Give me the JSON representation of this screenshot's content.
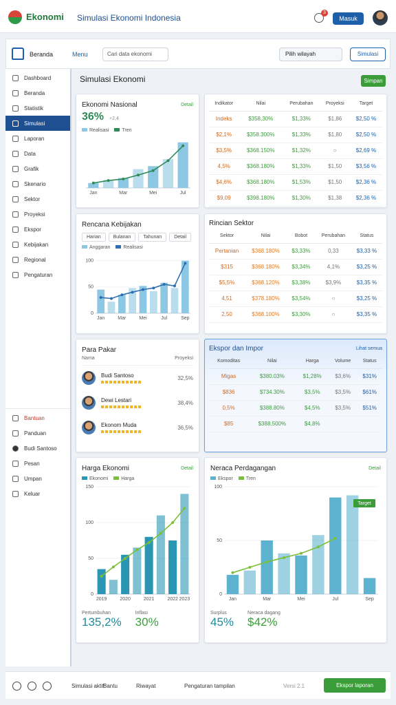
{
  "header": {
    "logo": "Ekonomi",
    "title": "Simulasi Ekonomi Indonesia",
    "badge": "3",
    "button": "Masuk"
  },
  "toolbar": {
    "home": "Beranda",
    "menu": "Menu",
    "search": "Cari data ekonomi",
    "select": "Pilih wilayah",
    "button": "Simulasi"
  },
  "sidebar": {
    "items": [
      "Dashboard",
      "Beranda",
      "Statistik",
      "Simulasi",
      "Laporan",
      "Data",
      "Grafik",
      "Skenario",
      "Sektor",
      "Proyeksi",
      "Ekspor",
      "Kebijakan",
      "Regional",
      "Pengaturan"
    ],
    "bottom_items": [
      "Bantuan",
      "Panduan",
      "Budi Santoso",
      "Pesan",
      "Umpan",
      "Keluar"
    ]
  },
  "page": {
    "title": "Simulasi Ekonomi",
    "save": "Simpan"
  },
  "panels": [
    {
      "kind": "chart",
      "title": "Ekonomi Nasional",
      "action": "Detail",
      "headline": "36%",
      "note": "+2,4",
      "chart": {
        "type": "combo",
        "categories": [
          "Jan",
          null,
          "Mar",
          null,
          "Mei",
          null,
          "Jul"
        ],
        "ylim": [
          0,
          100
        ],
        "series": [
          {
            "name": "Realisasi",
            "kind": "bar",
            "color": "#8cc7e3",
            "values": [
              10,
              16,
              20,
              38,
              44,
              58,
              92
            ]
          },
          {
            "name": "Tren",
            "kind": "line",
            "color": "#2e8b57",
            "values": [
              10,
              15,
              18,
              26,
              35,
              55,
              85
            ]
          }
        ]
      }
    },
    {
      "kind": "table",
      "columns": [
        "Indikator",
        "Nilai",
        "Perubahan",
        "Proyeksi",
        "Target"
      ],
      "rows": [
        [
          "Indeks",
          "$358,30%",
          "$1,33%",
          "$1,86",
          "$2,50 %"
        ],
        [
          "$2,1%",
          "$358.300%",
          "$1,33%",
          "$1,80",
          "$2,50 %"
        ],
        [
          "$3,5%",
          "$368.150%",
          "$1,32%",
          "○",
          "$2,69 %"
        ],
        [
          "4,5%",
          "$368.180%",
          "$1,33%",
          "$1,50",
          "$3,56 %"
        ],
        [
          "$4,6%",
          "$368.180%",
          "$1,53%",
          "$1,50",
          "$2,36 %"
        ],
        [
          "$9,09",
          "$398.180%",
          "$1,30%",
          "$1,38",
          "$2,36 %"
        ]
      ]
    },
    {
      "kind": "chart",
      "title": "Rencana Kebijakan",
      "tabs": [
        "Harian",
        "Bulanan",
        "Tahunan",
        "Detail"
      ],
      "chart": {
        "type": "combo",
        "categories": [
          "Jan",
          null,
          "Mar",
          null,
          "Mei",
          null,
          "Jul",
          null,
          "Sep"
        ],
        "ylim": [
          0,
          110
        ],
        "yticks": [
          0,
          50,
          100
        ],
        "series": [
          {
            "name": "Anggaran",
            "kind": "bar",
            "color": "#8cc7e3",
            "values": [
              45,
              22,
              35,
              48,
              52,
              42,
              58,
              48,
              100
            ]
          },
          {
            "name": "Realisasi",
            "kind": "line",
            "color": "#2f6fb0",
            "values": [
              30,
              28,
              35,
              40,
              45,
              48,
              55,
              52,
              95
            ]
          }
        ]
      }
    },
    {
      "kind": "table",
      "title": "Rincian Sektor",
      "columns": [
        "Sektor",
        "Nilai",
        "Bobot",
        "Perubahan",
        "Status"
      ],
      "rows": [
        [
          "Pertanian",
          "$368.180%",
          "$3,33%",
          "0,33",
          "$3,33 %"
        ],
        [
          "$315",
          "$368.180%",
          "$3,34%",
          "4,1%",
          "$3,25 %"
        ],
        [
          "$5,5%",
          "$368.120%",
          "$3,38%",
          "$3,9%",
          "$3,35 %"
        ],
        [
          "4,51",
          "$378.180%",
          "$3,54%",
          "○",
          "$3,25 %"
        ],
        [
          "2,50",
          "$368.100%",
          "$3,30%",
          "○",
          "$3,35 %"
        ]
      ]
    },
    {
      "kind": "list",
      "title": "Para Pakar",
      "columns": [
        "Nama",
        "Proyeksi"
      ],
      "items": [
        {
          "name": "Budi Santoso",
          "value": "32,5%"
        },
        {
          "name": "Dewi Lestari",
          "value": "38,4%"
        },
        {
          "name": "Ekonom Muda",
          "value": "36,5%"
        }
      ]
    },
    {
      "kind": "table",
      "title": "Ekspor dan Impor",
      "action": "Lihat semua",
      "columns": [
        "Komoditas",
        "Nilai",
        "Harga",
        "Volume",
        "Status"
      ],
      "rows": [
        [
          "Migas",
          "$380.03%",
          "$1,28%",
          "$3,6%",
          "$31%"
        ],
        [
          "$836",
          "$734.30%",
          "$3,5%",
          "$3,5%",
          "$61%"
        ],
        [
          "0,5%",
          "$388.80%",
          "$4,5%",
          "$3,5%",
          "$51%"
        ],
        [
          "$85",
          "$388.500%",
          "$4,8%",
          "",
          ""
        ]
      ]
    },
    {
      "kind": "chart",
      "title": "Harga Ekonomi",
      "action": "Detail",
      "chart": {
        "type": "combo",
        "categories": [
          "2019",
          null,
          "2020",
          null,
          "2021",
          null,
          "2022",
          "2023"
        ],
        "ylim": [
          0,
          150
        ],
        "yticks": [
          0,
          50,
          100,
          150
        ],
        "series": [
          {
            "name": "Ekonomi",
            "kind": "bar",
            "color": "#2a96b3",
            "values": [
              35,
              20,
              55,
              65,
              80,
              110,
              75,
              140
            ]
          },
          {
            "name": "Harga",
            "kind": "line",
            "color": "#7cbf3a",
            "values": [
              25,
              38,
              50,
              62,
              72,
              85,
              100,
              120
            ]
          }
        ]
      },
      "stats": [
        {
          "label": "Pertumbuhan",
          "value": "135,2%"
        },
        {
          "label": "Inflasi",
          "value": "30%"
        }
      ]
    },
    {
      "kind": "chart",
      "title": "Neraca Perdagangan",
      "action": "Detail",
      "chart": {
        "type": "combo",
        "categories": [
          "Jan",
          null,
          "Mar",
          null,
          "Mei",
          null,
          "Jul",
          null,
          "Sep"
        ],
        "ylim": [
          0,
          100
        ],
        "yticks": [
          0,
          50,
          100
        ],
        "annotation": "Target",
        "series": [
          {
            "name": "Ekspor",
            "kind": "bar",
            "color": "#5db3cf",
            "values": [
              18,
              22,
              50,
              38,
              36,
              55,
              90,
              92,
              15
            ]
          },
          {
            "name": "Tren",
            "kind": "line",
            "color": "#7cbf3a",
            "values": [
              20,
              25,
              30,
              34,
              38,
              44,
              52,
              null,
              null
            ]
          }
        ]
      },
      "stats": [
        {
          "label": "Surplus",
          "value": "45%"
        },
        {
          "label": "Neraca dagang",
          "value": "$42%"
        }
      ]
    }
  ],
  "footer": {
    "status": "Simulasi aktif",
    "help": "Bantu",
    "history": "Riwayat",
    "view": "Pengaturan tampilan",
    "version": "Versi 2.1",
    "button": "Ekspor laporan"
  }
}
